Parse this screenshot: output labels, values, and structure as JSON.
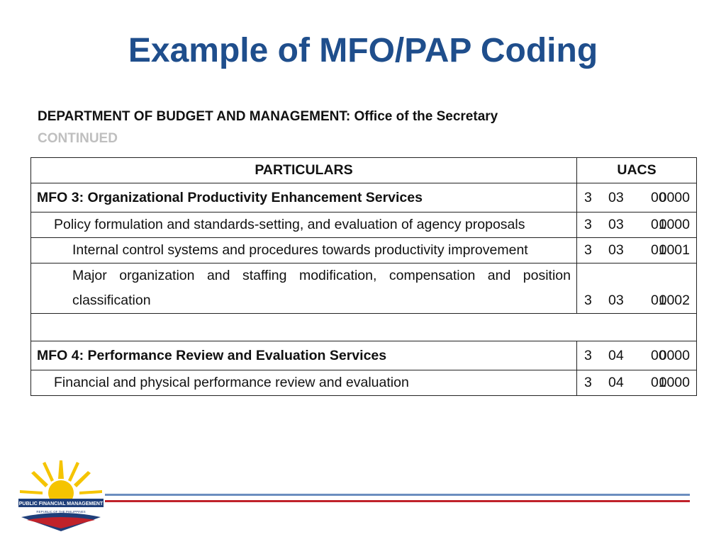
{
  "title": "Example of MFO/PAP Coding",
  "heading": {
    "department": "DEPARTMENT OF BUDGET AND MANAGEMENT:",
    "office": "Office of the Secretary",
    "note": "CONTINUED"
  },
  "table": {
    "header": [
      "PARTICULARS",
      "UACS"
    ],
    "rows": [
      {
        "particulars": "MFO 3: Organizational Productivity Enhancement Services",
        "uacs": [
          "3",
          "03",
          "00",
          "0000"
        ]
      },
      {
        "particulars": "Policy formulation and standards-setting, and evaluation of agency proposals",
        "uacs": [
          "3",
          "03",
          "01",
          "0000"
        ]
      },
      {
        "particulars": "Internal control systems and procedures towards productivity improvement",
        "uacs": [
          "3",
          "03",
          "01",
          "0001"
        ]
      },
      {
        "particulars": "Major organization and staffing modification, compensation and position classification",
        "uacs": [
          "3",
          "03",
          "01",
          "0002"
        ]
      },
      {
        "particulars": "MFO 4: Performance Review and Evaluation Services",
        "uacs": [
          "3",
          "04",
          "00",
          "0000"
        ]
      },
      {
        "particulars": "Financial and physical performance review and evaluation",
        "uacs": [
          "3",
          "04",
          "01",
          "0000"
        ]
      }
    ]
  },
  "logo": {
    "name": "PUBLIC FINANCIAL MANAGEMENT",
    "country": "REPUBLIC OF THE PHILIPPINES"
  }
}
